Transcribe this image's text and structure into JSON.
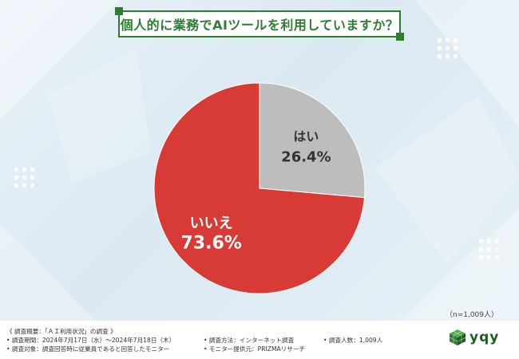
{
  "title": "個人的に業務でAIツールを利用していますか？",
  "sample_note": "（n=1,009人）",
  "colors": {
    "yes": "#bdbdbd",
    "no": "#d83b36",
    "title_green": "#2e7d32"
  },
  "chart_data": {
    "type": "pie",
    "title": "個人的に業務でAIツールを利用していますか？",
    "slices": [
      {
        "label": "はい",
        "value": 26.4,
        "display": "26.4%"
      },
      {
        "label": "いいえ",
        "value": 73.6,
        "display": "73.6%"
      }
    ]
  },
  "footer": {
    "overview": "《 調査概要：「ＡＩ利用状況」の調査 》",
    "period": "• 調査期間：2024年7月17日（水）～2024年7月18日（木）",
    "method": "• 調査方法：インターネット調査",
    "count": "• 調査人数：1,009人",
    "target": "• 調査対象：調査回答時に従業員であると回答したモニター",
    "provider": "• モニター提供元：PRIZMAリサーチ"
  },
  "logo": {
    "text": "yqy",
    "icon": "cube-logo-icon"
  }
}
